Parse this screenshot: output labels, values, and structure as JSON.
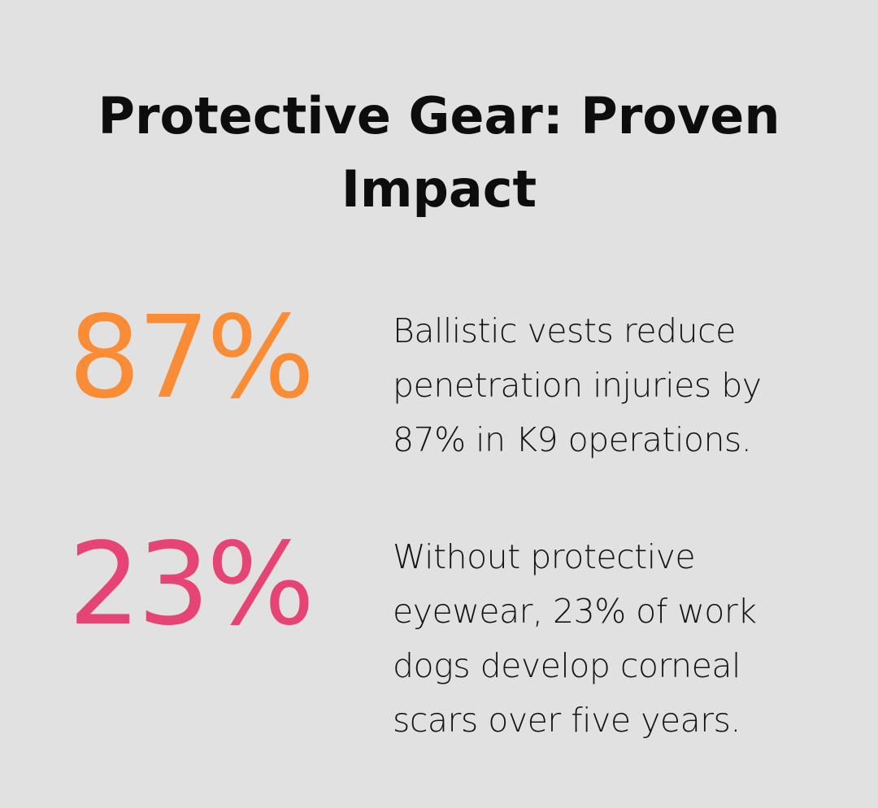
{
  "title": "Protective Gear: Proven Impact",
  "colors": {
    "background": "#e0e1e0",
    "stat1": "#fa8c36",
    "stat2": "#e54474",
    "text": "#111111"
  },
  "stats": [
    {
      "value": "87%",
      "lines": [
        "Ballistic vests reduce",
        "penetration injuries by",
        "87% in K9 operations."
      ]
    },
    {
      "value": "23%",
      "lines": [
        "Without protective",
        "eyewear, 23% of work",
        "dogs develop corneal",
        "scars over five years."
      ]
    }
  ]
}
